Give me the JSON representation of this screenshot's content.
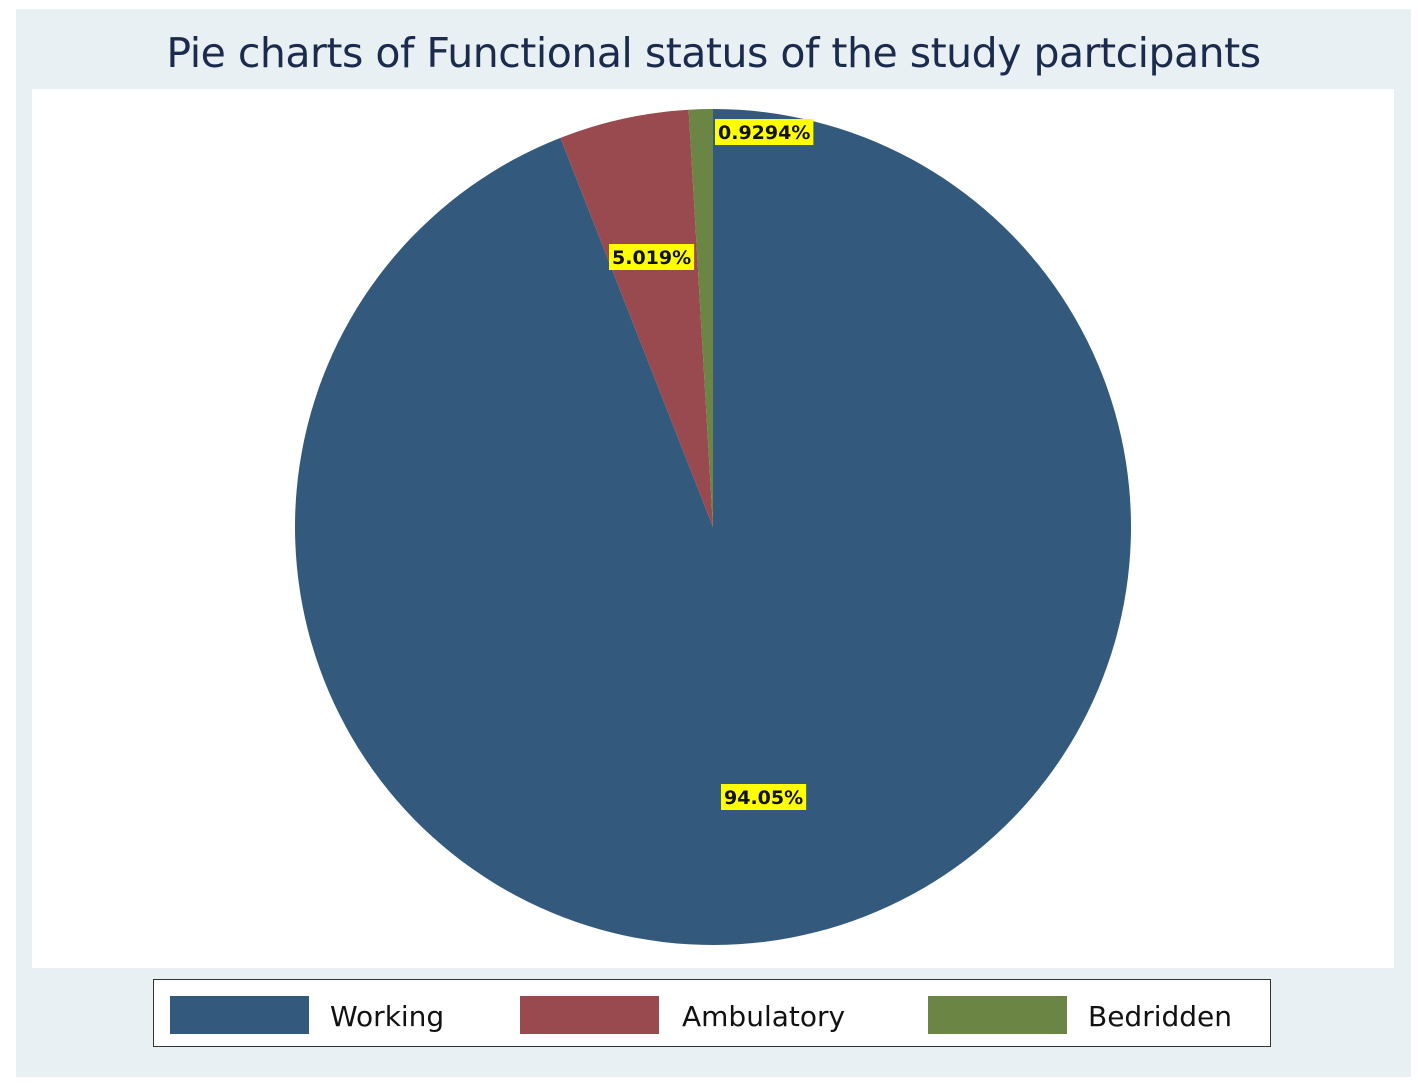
{
  "chart_data": {
    "type": "pie",
    "title": "Pie charts of Functional status of the study partcipants",
    "start_angle_deg": 90,
    "direction": "clockwise",
    "slices": [
      {
        "name": "Working",
        "value": 94.05,
        "label": "94.05%",
        "color": "#33597d"
      },
      {
        "name": "Ambulatory",
        "value": 5.019,
        "label": "5.019%",
        "color": "#984a4f"
      },
      {
        "name": "Bedridden",
        "value": 0.9294,
        "label": "0.9294%",
        "color": "#6a8544"
      }
    ],
    "legend": {
      "placement": "bottom",
      "items": [
        "Working",
        "Ambulatory",
        "Bedridden"
      ]
    },
    "label_background": "#ffff00",
    "plot_background": "#ffffff",
    "outer_background": "#e9f0f3"
  }
}
